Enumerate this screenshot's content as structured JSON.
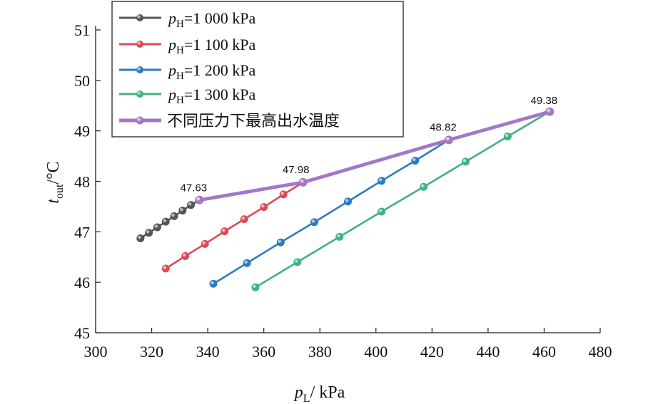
{
  "chart_data": {
    "type": "line",
    "xlabel": {
      "var": "p",
      "sub": "L",
      "unit": "/ kPa"
    },
    "ylabel": {
      "var": "t",
      "sub": "out",
      "unit": "/°C"
    },
    "xlim": [
      300,
      480
    ],
    "ylim": [
      45,
      51
    ],
    "xticks": [
      300,
      320,
      340,
      360,
      380,
      400,
      420,
      440,
      460,
      480
    ],
    "yticks": [
      45,
      46,
      47,
      48,
      49,
      50,
      51
    ],
    "xtick_labels": [
      "300",
      "320",
      "340",
      "360",
      "380",
      "400",
      "420",
      "440",
      "460",
      "480"
    ],
    "ytick_labels": [
      "45",
      "46",
      "47",
      "48",
      "49",
      "50",
      "51"
    ],
    "legend_position": "top-left",
    "series": [
      {
        "name": "pH=1 000 kPa",
        "label_var": "p",
        "label_sub": "H",
        "label_rest": "=1 000 kPa",
        "color": "#555555",
        "x": [
          316,
          319,
          322,
          325,
          328,
          331,
          334,
          337
        ],
        "y": [
          46.87,
          46.98,
          47.09,
          47.2,
          47.31,
          47.42,
          47.53,
          47.63
        ]
      },
      {
        "name": "pH=1 100 kPa",
        "label_var": "p",
        "label_sub": "H",
        "label_rest": "=1 100 kPa",
        "color": "#dc4b55",
        "x": [
          325,
          332,
          339,
          346,
          353,
          360,
          367,
          374
        ],
        "y": [
          46.27,
          46.52,
          46.76,
          47.01,
          47.25,
          47.49,
          47.74,
          47.98
        ]
      },
      {
        "name": "pH=1 200 kPa",
        "label_var": "p",
        "label_sub": "H",
        "label_rest": "=1 200 kPa",
        "color": "#2b7bc0",
        "x": [
          342,
          354,
          366,
          378,
          390,
          402,
          414,
          426
        ],
        "y": [
          45.97,
          46.38,
          46.79,
          47.19,
          47.6,
          48.01,
          48.41,
          48.82
        ]
      },
      {
        "name": "pH=1 300 kPa",
        "label_var": "p",
        "label_sub": "H",
        "label_rest": "=1 300 kPa",
        "color": "#3fb27f",
        "x": [
          357,
          372,
          387,
          402,
          417,
          432,
          447,
          462
        ],
        "y": [
          45.9,
          46.4,
          46.9,
          47.4,
          47.89,
          48.39,
          48.89,
          49.38
        ]
      }
    ],
    "max_series": {
      "name": "不同压力下最高出水温度",
      "color": "#a576c6",
      "x": [
        337,
        374,
        426,
        462
      ],
      "y": [
        47.63,
        47.98,
        48.82,
        49.38
      ],
      "labels": [
        "47.63",
        "47.98",
        "48.82",
        "49.38"
      ]
    }
  }
}
